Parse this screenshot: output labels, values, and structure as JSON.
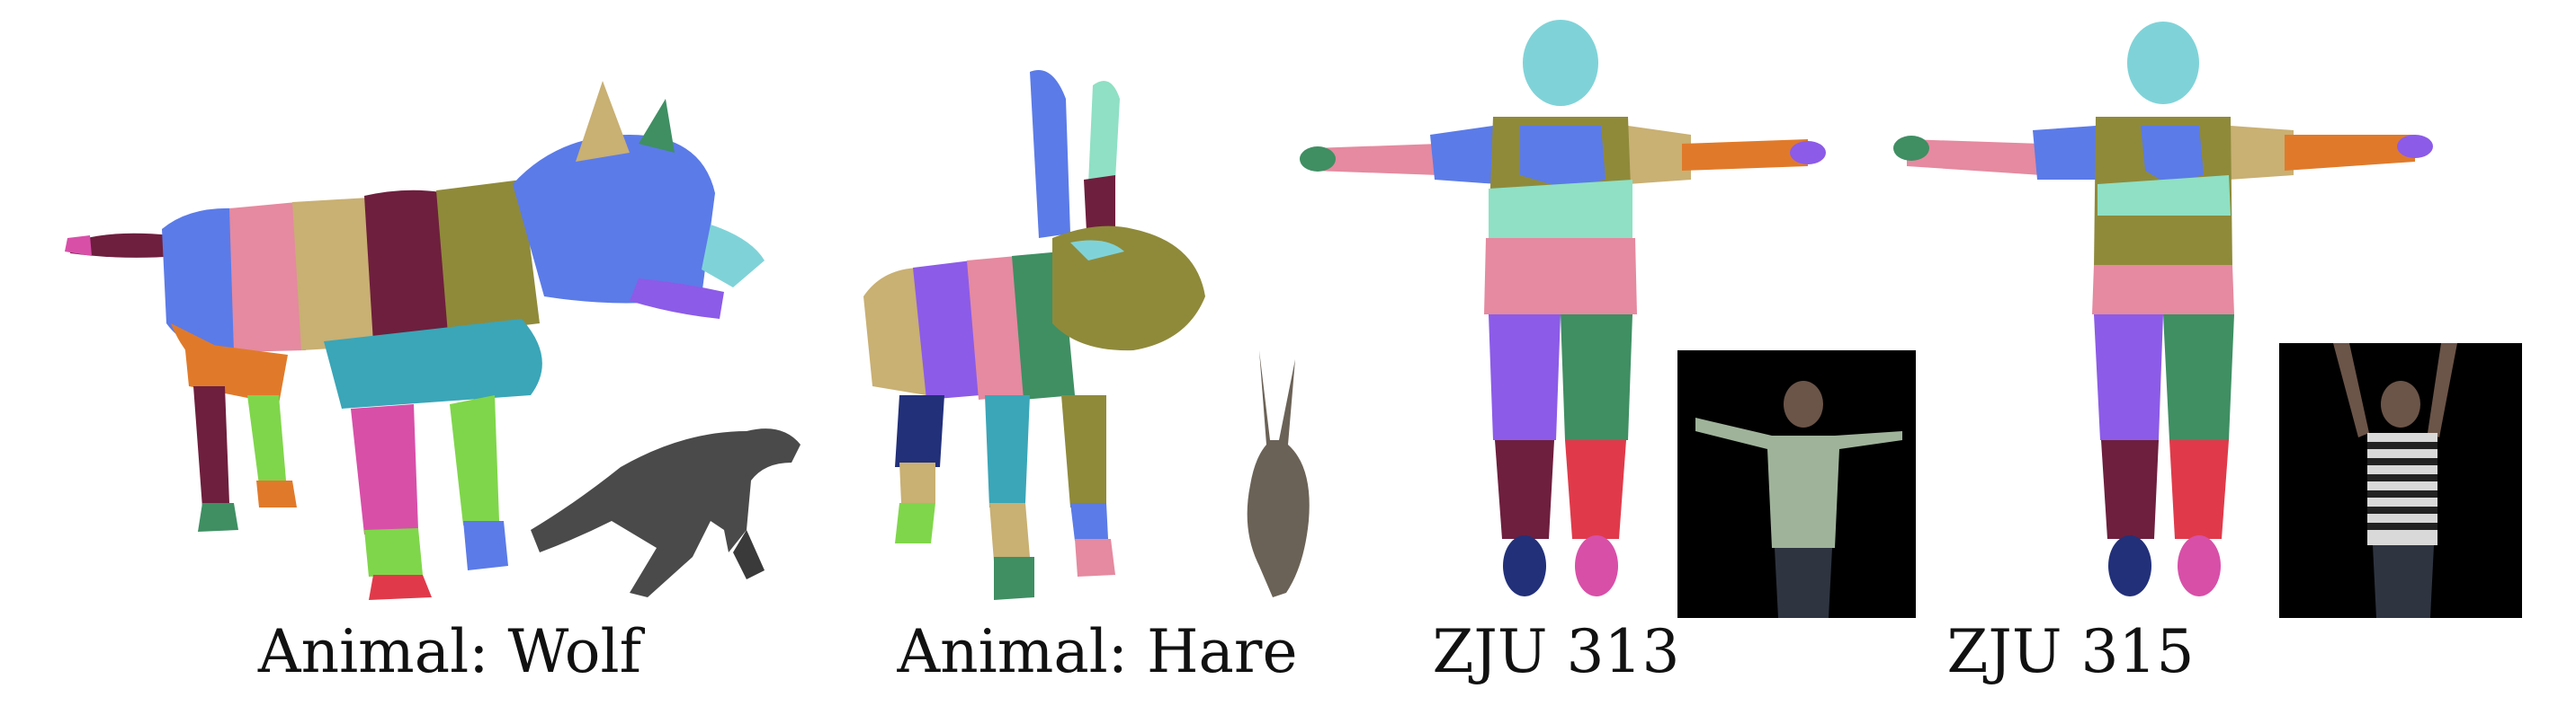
{
  "panels": [
    {
      "caption": "Animal: Wolf",
      "subject": "wolf-mesh",
      "inset": "wolf-photo"
    },
    {
      "caption": "Animal: Hare",
      "subject": "hare-mesh",
      "inset": "hare-photo"
    },
    {
      "caption": "ZJU 313",
      "subject": "human-mesh",
      "inset": "person-photo-313"
    },
    {
      "caption": "ZJU 315",
      "subject": "human-mesh",
      "inset": "person-photo-315"
    }
  ],
  "palette": {
    "blue": "#5b7be8",
    "cyan": "#7fd3d8",
    "teal": "#3aa6b8",
    "olive": "#8f8a3a",
    "tan": "#c9b073",
    "pink": "#e58aa0",
    "magenta": "#d84fa8",
    "maroon": "#6e1f3d",
    "purple": "#8c5be8",
    "orange": "#e07a2a",
    "green": "#7fd64a",
    "darkgreen": "#3f8f63",
    "red": "#e03a4a",
    "navy": "#22307a",
    "mint": "#8fe0c4"
  }
}
